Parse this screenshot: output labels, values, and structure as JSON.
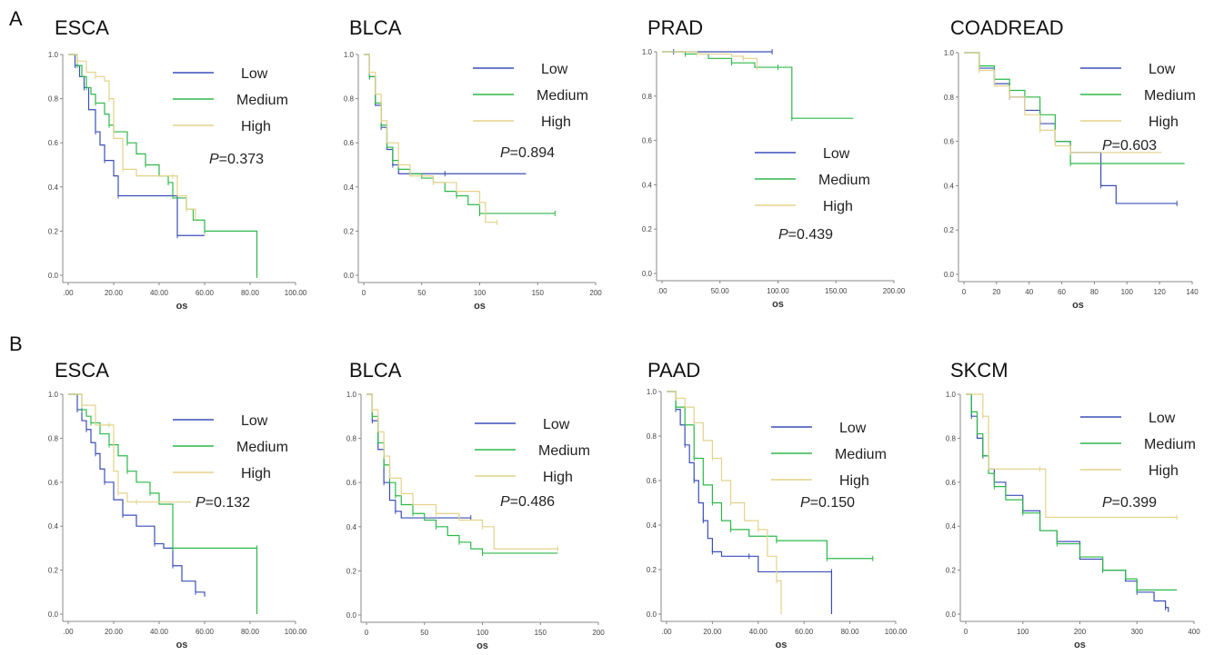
{
  "row_labels": [
    "A",
    "B"
  ],
  "colors": {
    "Low": "#3b4fb8",
    "Medium": "#2db84a",
    "High": "#e3d38a"
  },
  "chart_data": [
    {
      "type": "line",
      "title": "ESCA",
      "xlabel": "os",
      "xticks": [
        ".00",
        "20.00",
        "40.00",
        "60.00",
        "80.00",
        "100.00"
      ],
      "xlim": [
        0,
        100
      ],
      "yticks": [
        "0.0",
        "0.2",
        "0.4",
        "0.6",
        "0.8",
        "1.0"
      ],
      "ylim": [
        0,
        1
      ],
      "legend": [
        "Low",
        "Medium",
        "High"
      ],
      "pvalue_prefix": "P",
      "pvalue": "=0.373",
      "series": [
        {
          "name": "Low",
          "x": [
            0,
            3,
            5,
            7,
            9,
            12,
            14,
            16,
            20,
            22,
            46,
            48,
            60
          ],
          "y": [
            1,
            0.95,
            0.9,
            0.85,
            0.75,
            0.65,
            0.59,
            0.52,
            0.45,
            0.36,
            0.36,
            0.18,
            0.18
          ]
        },
        {
          "name": "Medium",
          "x": [
            0,
            4,
            6,
            8,
            10,
            12,
            16,
            18,
            20,
            26,
            30,
            34,
            40,
            44,
            46,
            52,
            55,
            60,
            83,
            83
          ],
          "y": [
            1,
            0.95,
            0.9,
            0.85,
            0.82,
            0.78,
            0.73,
            0.68,
            0.65,
            0.6,
            0.55,
            0.5,
            0.45,
            0.42,
            0.35,
            0.3,
            0.25,
            0.2,
            0.2,
            0.0
          ]
        },
        {
          "name": "High",
          "x": [
            0,
            4,
            8,
            12,
            16,
            18,
            20,
            24,
            30,
            46,
            48,
            52,
            56
          ],
          "y": [
            1,
            0.97,
            0.92,
            0.9,
            0.88,
            0.8,
            0.62,
            0.48,
            0.45,
            0.45,
            0.36,
            0.3,
            0.25
          ]
        }
      ]
    },
    {
      "type": "line",
      "title": "BLCA",
      "xlabel": "os",
      "xticks": [
        "0",
        "50",
        "100",
        "150",
        "200"
      ],
      "xlim": [
        0,
        200
      ],
      "yticks": [
        "0.0",
        "0.2",
        "0.4",
        "0.6",
        "0.8",
        "1.0"
      ],
      "ylim": [
        0,
        1
      ],
      "legend": [
        "Low",
        "Medium",
        "High"
      ],
      "pvalue_prefix": "P",
      "pvalue": "=0.894",
      "series": [
        {
          "name": "Low",
          "x": [
            0,
            5,
            10,
            15,
            20,
            25,
            30,
            70,
            140
          ],
          "y": [
            1,
            0.9,
            0.77,
            0.67,
            0.57,
            0.5,
            0.46,
            0.46,
            0.46
          ]
        },
        {
          "name": "Medium",
          "x": [
            0,
            5,
            10,
            15,
            20,
            25,
            30,
            40,
            50,
            60,
            70,
            80,
            90,
            100,
            130,
            165
          ],
          "y": [
            1,
            0.9,
            0.78,
            0.68,
            0.58,
            0.52,
            0.48,
            0.46,
            0.44,
            0.42,
            0.38,
            0.36,
            0.32,
            0.28,
            0.28,
            0.28
          ]
        },
        {
          "name": "High",
          "x": [
            0,
            5,
            10,
            15,
            20,
            30,
            40,
            60,
            80,
            100,
            105,
            115
          ],
          "y": [
            1,
            0.92,
            0.82,
            0.7,
            0.6,
            0.5,
            0.45,
            0.42,
            0.38,
            0.33,
            0.24,
            0.24
          ]
        }
      ]
    },
    {
      "type": "line",
      "title": "PRAD",
      "xlabel": "os",
      "xticks": [
        ".00",
        "50.00",
        "100.00",
        "150.00",
        "200.00"
      ],
      "xlim": [
        0,
        200
      ],
      "yticks": [
        "0.0",
        "0.2",
        "0.4",
        "0.6",
        "0.8",
        "1.0"
      ],
      "ylim": [
        0,
        1
      ],
      "legend": [
        "Low",
        "Medium",
        "High"
      ],
      "pvalue_prefix": "P",
      "pvalue": "=0.439",
      "series": [
        {
          "name": "Low",
          "x": [
            0,
            10,
            50,
            95
          ],
          "y": [
            1,
            1,
            1,
            1
          ]
        },
        {
          "name": "Medium",
          "x": [
            0,
            20,
            40,
            60,
            80,
            100,
            110,
            112,
            165
          ],
          "y": [
            1,
            0.99,
            0.97,
            0.95,
            0.93,
            0.93,
            0.93,
            0.7,
            0.7
          ]
        },
        {
          "name": "High",
          "x": [
            0,
            30,
            60,
            70,
            80,
            82
          ],
          "y": [
            1,
            0.99,
            0.98,
            0.97,
            0.97,
            0.93
          ]
        }
      ]
    },
    {
      "type": "line",
      "title": "COADREAD",
      "xlabel": "os",
      "xticks": [
        "0",
        "20",
        "40",
        "60",
        "80",
        "100",
        "120",
        "140"
      ],
      "xlim": [
        0,
        150
      ],
      "yticks": [
        "0.0",
        "0.2",
        "0.4",
        "0.6",
        "0.8",
        "1.0"
      ],
      "ylim": [
        0,
        1
      ],
      "legend": [
        "Low",
        "Medium",
        "High"
      ],
      "pvalue_prefix": "P",
      "pvalue": "=0.603",
      "series": [
        {
          "name": "Low",
          "x": [
            0,
            10,
            20,
            30,
            40,
            50,
            60,
            70,
            80,
            90,
            100,
            140
          ],
          "y": [
            1,
            0.93,
            0.86,
            0.8,
            0.74,
            0.68,
            0.6,
            0.55,
            0.55,
            0.4,
            0.32,
            0.32
          ]
        },
        {
          "name": "Medium",
          "x": [
            0,
            10,
            20,
            30,
            40,
            50,
            60,
            70,
            145
          ],
          "y": [
            1,
            0.94,
            0.88,
            0.83,
            0.8,
            0.72,
            0.6,
            0.5,
            0.5
          ]
        },
        {
          "name": "High",
          "x": [
            0,
            10,
            20,
            30,
            40,
            50,
            60,
            70,
            130
          ],
          "y": [
            1,
            0.92,
            0.85,
            0.8,
            0.72,
            0.65,
            0.58,
            0.55,
            0.55
          ]
        }
      ]
    },
    {
      "type": "line",
      "title": "ESCA",
      "xlabel": "os",
      "xticks": [
        ".00",
        "20.00",
        "40.00",
        "60.00",
        "80.00",
        "100.00"
      ],
      "xlim": [
        0,
        100
      ],
      "yticks": [
        "0.0",
        "0.2",
        "0.4",
        "0.6",
        "0.8",
        "1.0"
      ],
      "ylim": [
        0,
        1
      ],
      "legend": [
        "Low",
        "Medium",
        "High"
      ],
      "pvalue_prefix": "P",
      "pvalue": "=0.132",
      "series": [
        {
          "name": "Low",
          "x": [
            0,
            4,
            6,
            8,
            10,
            12,
            14,
            16,
            20,
            24,
            30,
            38,
            42,
            46,
            50,
            56,
            60
          ],
          "y": [
            1,
            0.93,
            0.88,
            0.84,
            0.78,
            0.73,
            0.66,
            0.6,
            0.52,
            0.45,
            0.4,
            0.32,
            0.3,
            0.22,
            0.15,
            0.1,
            0.08
          ]
        },
        {
          "name": "Medium",
          "x": [
            0,
            6,
            8,
            10,
            14,
            18,
            22,
            26,
            30,
            36,
            40,
            46,
            50,
            83,
            83
          ],
          "y": [
            1,
            0.93,
            0.9,
            0.87,
            0.82,
            0.77,
            0.72,
            0.65,
            0.6,
            0.55,
            0.5,
            0.3,
            0.3,
            0.3,
            0.0
          ]
        },
        {
          "name": "High",
          "x": [
            0,
            6,
            12,
            18,
            20,
            22,
            26,
            30,
            54
          ],
          "y": [
            1,
            0.95,
            0.86,
            0.86,
            0.65,
            0.55,
            0.51,
            0.51,
            0.51
          ]
        }
      ]
    },
    {
      "type": "line",
      "title": "BLCA",
      "xlabel": "os",
      "xticks": [
        "0",
        "50",
        "100",
        "150",
        "200"
      ],
      "xlim": [
        0,
        200
      ],
      "yticks": [
        "0.0",
        "0.2",
        "0.4",
        "0.6",
        "0.8",
        "1.0"
      ],
      "ylim": [
        0,
        1
      ],
      "legend": [
        "Low",
        "Medium",
        "High"
      ],
      "pvalue_prefix": "P",
      "pvalue": "=0.486",
      "series": [
        {
          "name": "Low",
          "x": [
            0,
            5,
            10,
            15,
            20,
            25,
            30,
            90
          ],
          "y": [
            1,
            0.88,
            0.75,
            0.6,
            0.52,
            0.47,
            0.44,
            0.44
          ]
        },
        {
          "name": "Medium",
          "x": [
            0,
            5,
            10,
            15,
            20,
            25,
            30,
            40,
            50,
            60,
            70,
            80,
            90,
            100,
            165
          ],
          "y": [
            1,
            0.9,
            0.78,
            0.68,
            0.6,
            0.54,
            0.5,
            0.46,
            0.43,
            0.4,
            0.36,
            0.33,
            0.3,
            0.28,
            0.28
          ]
        },
        {
          "name": "High",
          "x": [
            0,
            5,
            10,
            15,
            20,
            30,
            40,
            60,
            80,
            100,
            110,
            165
          ],
          "y": [
            1,
            0.93,
            0.83,
            0.72,
            0.62,
            0.55,
            0.5,
            0.46,
            0.43,
            0.4,
            0.3,
            0.3
          ]
        }
      ]
    },
    {
      "type": "line",
      "title": "PAAD",
      "xlabel": "os",
      "xticks": [
        ".00",
        "20.00",
        "40.00",
        "60.00",
        "80.00",
        "100.00"
      ],
      "xlim": [
        0,
        100
      ],
      "yticks": [
        "0.0",
        "0.2",
        "0.4",
        "0.6",
        "0.8",
        "1.0"
      ],
      "ylim": [
        0,
        1
      ],
      "legend": [
        "Low",
        "Medium",
        "High"
      ],
      "pvalue_prefix": "P",
      "pvalue": "=0.150",
      "series": [
        {
          "name": "Low",
          "x": [
            0,
            4,
            6,
            8,
            10,
            12,
            14,
            16,
            18,
            20,
            24,
            36,
            40,
            72,
            72
          ],
          "y": [
            1,
            0.92,
            0.85,
            0.76,
            0.68,
            0.6,
            0.5,
            0.42,
            0.34,
            0.28,
            0.26,
            0.26,
            0.19,
            0.19,
            0.0
          ]
        },
        {
          "name": "Medium",
          "x": [
            0,
            4,
            8,
            12,
            16,
            20,
            24,
            28,
            36,
            48,
            60,
            70,
            80,
            90
          ],
          "y": [
            1,
            0.93,
            0.85,
            0.7,
            0.58,
            0.5,
            0.42,
            0.38,
            0.35,
            0.33,
            0.33,
            0.25,
            0.25,
            0.25
          ]
        },
        {
          "name": "High",
          "x": [
            0,
            4,
            8,
            12,
            16,
            20,
            24,
            28,
            34,
            40,
            44,
            48,
            50
          ],
          "y": [
            1,
            0.97,
            0.93,
            0.86,
            0.78,
            0.7,
            0.6,
            0.5,
            0.42,
            0.38,
            0.26,
            0.15,
            0.0
          ]
        }
      ]
    },
    {
      "type": "line",
      "title": "SKCM",
      "xlabel": "os",
      "xticks": [
        "0",
        "100",
        "200",
        "300",
        "400"
      ],
      "xlim": [
        0,
        400
      ],
      "yticks": [
        "0.0",
        "0.2",
        "0.4",
        "0.6",
        "0.8",
        "1.0"
      ],
      "ylim": [
        0,
        1
      ],
      "legend": [
        "Low",
        "Medium",
        "High"
      ],
      "pvalue_prefix": "P",
      "pvalue": "=0.399",
      "series": [
        {
          "name": "Low",
          "x": [
            0,
            10,
            20,
            30,
            40,
            50,
            70,
            100,
            130,
            160,
            200,
            240,
            280,
            300,
            330,
            350,
            355
          ],
          "y": [
            1,
            0.9,
            0.8,
            0.72,
            0.66,
            0.6,
            0.54,
            0.47,
            0.38,
            0.33,
            0.25,
            0.2,
            0.15,
            0.1,
            0.06,
            0.03,
            0.01
          ]
        },
        {
          "name": "Medium",
          "x": [
            0,
            10,
            20,
            30,
            40,
            50,
            70,
            100,
            130,
            160,
            200,
            240,
            280,
            300,
            370
          ],
          "y": [
            1,
            0.92,
            0.82,
            0.72,
            0.64,
            0.58,
            0.52,
            0.46,
            0.38,
            0.32,
            0.26,
            0.2,
            0.16,
            0.11,
            0.11
          ]
        },
        {
          "name": "High",
          "x": [
            0,
            30,
            40,
            130,
            140,
            370
          ],
          "y": [
            1,
            0.9,
            0.66,
            0.66,
            0.44,
            0.44
          ]
        }
      ]
    }
  ]
}
